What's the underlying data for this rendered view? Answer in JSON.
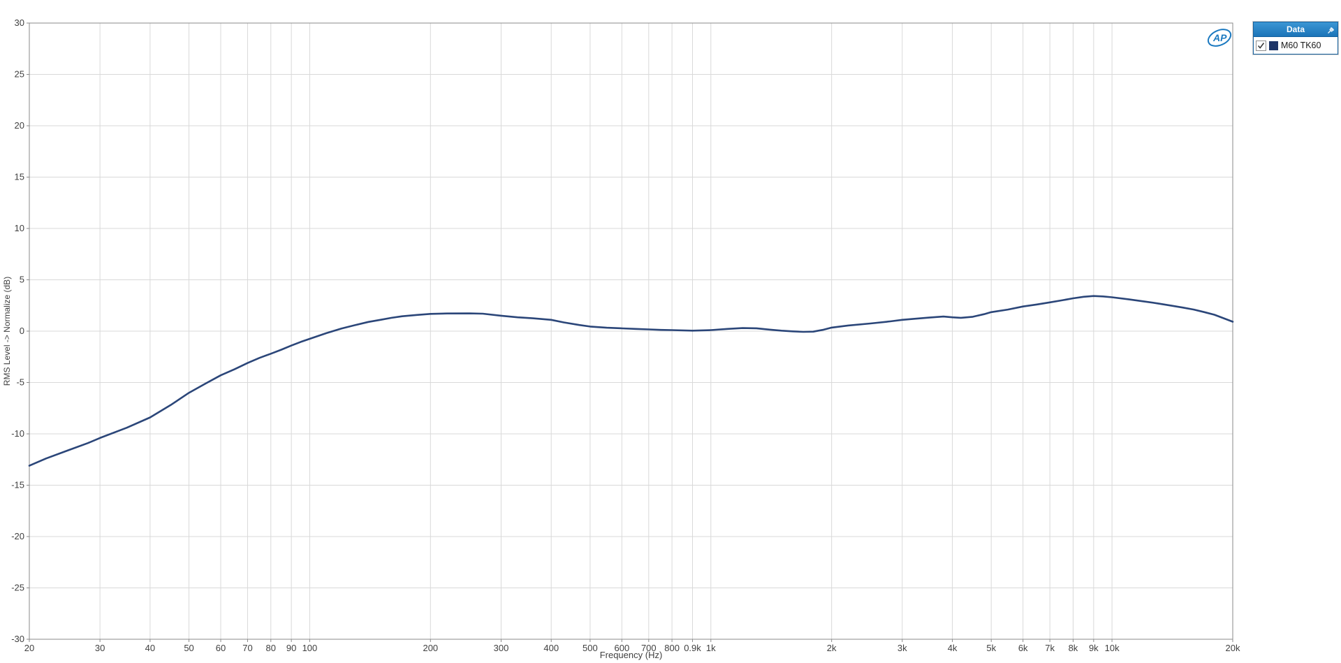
{
  "legend": {
    "title": "Data",
    "pin_icon": "pin-icon",
    "header_bg": "#1b74b8",
    "items": [
      {
        "label": "M60 TK60",
        "checked": true,
        "swatch_color": "#1e3567"
      }
    ]
  },
  "logo": {
    "text": "AP",
    "color": "#1b79c0"
  },
  "colors": {
    "curve": "#2b4679",
    "gridline": "#d9d9d9",
    "plot_border": "#8a8a8a",
    "tick_text": "#404040",
    "background": "#ffffff"
  },
  "chart_data": {
    "type": "line",
    "title": "",
    "xlabel": "Frequency (Hz)",
    "ylabel": "RMS Level -> Normalize (dB)",
    "x_scale": "log",
    "xlim": [
      20,
      20000
    ],
    "ylim": [
      -30,
      30
    ],
    "grid": true,
    "legend_position": "top-right-outside",
    "x_ticks": [
      {
        "v": 20,
        "label": "20"
      },
      {
        "v": 30,
        "label": "30"
      },
      {
        "v": 40,
        "label": "40"
      },
      {
        "v": 50,
        "label": "50"
      },
      {
        "v": 60,
        "label": "60"
      },
      {
        "v": 70,
        "label": "70"
      },
      {
        "v": 80,
        "label": "80"
      },
      {
        "v": 90,
        "label": "90"
      },
      {
        "v": 100,
        "label": "100"
      },
      {
        "v": 200,
        "label": "200"
      },
      {
        "v": 300,
        "label": "300"
      },
      {
        "v": 400,
        "label": "400"
      },
      {
        "v": 500,
        "label": "500"
      },
      {
        "v": 600,
        "label": "600"
      },
      {
        "v": 700,
        "label": "700"
      },
      {
        "v": 800,
        "label": "800"
      },
      {
        "v": 900,
        "label": "0.9k"
      },
      {
        "v": 1000,
        "label": "1k"
      },
      {
        "v": 2000,
        "label": "2k"
      },
      {
        "v": 3000,
        "label": "3k"
      },
      {
        "v": 4000,
        "label": "4k"
      },
      {
        "v": 5000,
        "label": "5k"
      },
      {
        "v": 6000,
        "label": "6k"
      },
      {
        "v": 7000,
        "label": "7k"
      },
      {
        "v": 8000,
        "label": "8k"
      },
      {
        "v": 9000,
        "label": "9k"
      },
      {
        "v": 10000,
        "label": "10k"
      },
      {
        "v": 20000,
        "label": "20k"
      }
    ],
    "y_ticks": [
      {
        "v": 30,
        "label": "30"
      },
      {
        "v": 25,
        "label": "25"
      },
      {
        "v": 20,
        "label": "20"
      },
      {
        "v": 15,
        "label": "15"
      },
      {
        "v": 10,
        "label": "10"
      },
      {
        "v": 5,
        "label": "5"
      },
      {
        "v": 0,
        "label": "0"
      },
      {
        "v": -5,
        "label": "-5"
      },
      {
        "v": -10,
        "label": "-10"
      },
      {
        "v": -15,
        "label": "-15"
      },
      {
        "v": -20,
        "label": "-20"
      },
      {
        "v": -25,
        "label": "-25"
      },
      {
        "v": -30,
        "label": "-30"
      }
    ],
    "series": [
      {
        "name": "M60 TK60",
        "color": "#2b4679",
        "points": [
          [
            20,
            -13.1
          ],
          [
            22,
            -12.4
          ],
          [
            25,
            -11.6
          ],
          [
            28,
            -10.9
          ],
          [
            30,
            -10.4
          ],
          [
            35,
            -9.4
          ],
          [
            40,
            -8.4
          ],
          [
            45,
            -7.2
          ],
          [
            50,
            -6.0
          ],
          [
            55,
            -5.1
          ],
          [
            60,
            -4.3
          ],
          [
            65,
            -3.7
          ],
          [
            70,
            -3.1
          ],
          [
            75,
            -2.6
          ],
          [
            80,
            -2.2
          ],
          [
            85,
            -1.8
          ],
          [
            90,
            -1.4
          ],
          [
            95,
            -1.05
          ],
          [
            100,
            -0.75
          ],
          [
            110,
            -0.2
          ],
          [
            120,
            0.25
          ],
          [
            130,
            0.6
          ],
          [
            140,
            0.9
          ],
          [
            150,
            1.1
          ],
          [
            160,
            1.3
          ],
          [
            170,
            1.45
          ],
          [
            185,
            1.58
          ],
          [
            200,
            1.68
          ],
          [
            220,
            1.72
          ],
          [
            250,
            1.73
          ],
          [
            270,
            1.7
          ],
          [
            300,
            1.5
          ],
          [
            330,
            1.35
          ],
          [
            360,
            1.25
          ],
          [
            400,
            1.1
          ],
          [
            430,
            0.85
          ],
          [
            470,
            0.6
          ],
          [
            500,
            0.45
          ],
          [
            550,
            0.33
          ],
          [
            600,
            0.27
          ],
          [
            650,
            0.22
          ],
          [
            700,
            0.17
          ],
          [
            750,
            0.12
          ],
          [
            800,
            0.1
          ],
          [
            900,
            0.05
          ],
          [
            1000,
            0.1
          ],
          [
            1100,
            0.22
          ],
          [
            1200,
            0.3
          ],
          [
            1300,
            0.28
          ],
          [
            1400,
            0.15
          ],
          [
            1500,
            0.05
          ],
          [
            1600,
            -0.02
          ],
          [
            1700,
            -0.07
          ],
          [
            1800,
            -0.05
          ],
          [
            1900,
            0.12
          ],
          [
            2000,
            0.35
          ],
          [
            2200,
            0.55
          ],
          [
            2500,
            0.75
          ],
          [
            2800,
            0.95
          ],
          [
            3000,
            1.1
          ],
          [
            3200,
            1.2
          ],
          [
            3500,
            1.32
          ],
          [
            3800,
            1.42
          ],
          [
            4000,
            1.35
          ],
          [
            4200,
            1.3
          ],
          [
            4500,
            1.4
          ],
          [
            4800,
            1.65
          ],
          [
            5000,
            1.85
          ],
          [
            5500,
            2.1
          ],
          [
            6000,
            2.4
          ],
          [
            6500,
            2.6
          ],
          [
            7000,
            2.8
          ],
          [
            7500,
            3.0
          ],
          [
            8000,
            3.2
          ],
          [
            8500,
            3.35
          ],
          [
            9000,
            3.42
          ],
          [
            9500,
            3.38
          ],
          [
            10000,
            3.3
          ],
          [
            11000,
            3.1
          ],
          [
            12000,
            2.9
          ],
          [
            13000,
            2.7
          ],
          [
            14000,
            2.5
          ],
          [
            15000,
            2.3
          ],
          [
            16000,
            2.1
          ],
          [
            17000,
            1.85
          ],
          [
            18000,
            1.6
          ],
          [
            19000,
            1.25
          ],
          [
            20000,
            0.92
          ]
        ]
      }
    ]
  }
}
